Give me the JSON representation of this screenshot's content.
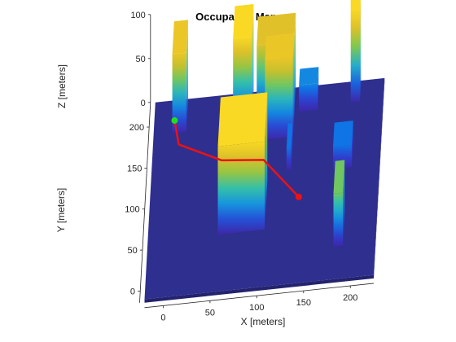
{
  "chart_data": {
    "type": "3d_occupancy_map",
    "title": "Occupancy Map",
    "xlabel": "X [meters]",
    "ylabel": "Y [meters]",
    "zlabel": "Z [meters]",
    "xlim": [
      -20,
      225
    ],
    "ylim": [
      -10,
      230
    ],
    "zlim": [
      0,
      100
    ],
    "x_ticks": [
      "0",
      "50",
      "100",
      "150",
      "200"
    ],
    "y_ticks": [
      "0",
      "50",
      "100",
      "150",
      "200"
    ],
    "z_ticks": [
      "0",
      "50",
      "100"
    ],
    "ground_color": "#2f2f8f",
    "colormap": [
      "#3e26a8",
      "#2f3fcf",
      "#0f74e6",
      "#1ba5d8",
      "#35c0a8",
      "#7fc84f",
      "#c5c02e",
      "#e8c128",
      "#f9d923"
    ],
    "obstacles": [
      {
        "x": [
          0,
          15
        ],
        "y": [
          190,
          230
        ],
        "height": 90
      },
      {
        "x": [
          65,
          85
        ],
        "y": [
          190,
          230
        ],
        "height": 100
      },
      {
        "x": [
          90,
          130
        ],
        "y": [
          195,
          230
        ],
        "height": 85
      },
      {
        "x": [
          100,
          130
        ],
        "y": [
          170,
          200
        ],
        "height": 90
      },
      {
        "x": [
          135,
          155
        ],
        "y": [
          200,
          220
        ],
        "height": 30
      },
      {
        "x": [
          190,
          200
        ],
        "y": [
          205,
          225
        ],
        "height": 125
      },
      {
        "x": [
          55,
          105
        ],
        "y": [
          60,
          120
        ],
        "height": 100
      },
      {
        "x": [
          125,
          130
        ],
        "y": [
          130,
          160
        ],
        "height": 25
      },
      {
        "x": [
          175,
          195
        ],
        "y": [
          125,
          155
        ],
        "height": 25
      },
      {
        "x": [
          180,
          190
        ],
        "y": [
          30,
          70
        ],
        "height": 60
      }
    ],
    "path": {
      "color": "#ee1111",
      "points": [
        {
          "x": 2,
          "y": 200,
          "z": 5
        },
        {
          "x": 8,
          "y": 170,
          "z": 5
        },
        {
          "x": 55,
          "y": 145,
          "z": 5
        },
        {
          "x": 100,
          "y": 140,
          "z": 5
        },
        {
          "x": 140,
          "y": 90,
          "z": 5
        }
      ],
      "start": {
        "x": 2,
        "y": 200,
        "z": 5,
        "color": "#22dd22"
      },
      "goal": {
        "x": 140,
        "y": 90,
        "z": 5,
        "color": "#ee1111"
      }
    }
  }
}
